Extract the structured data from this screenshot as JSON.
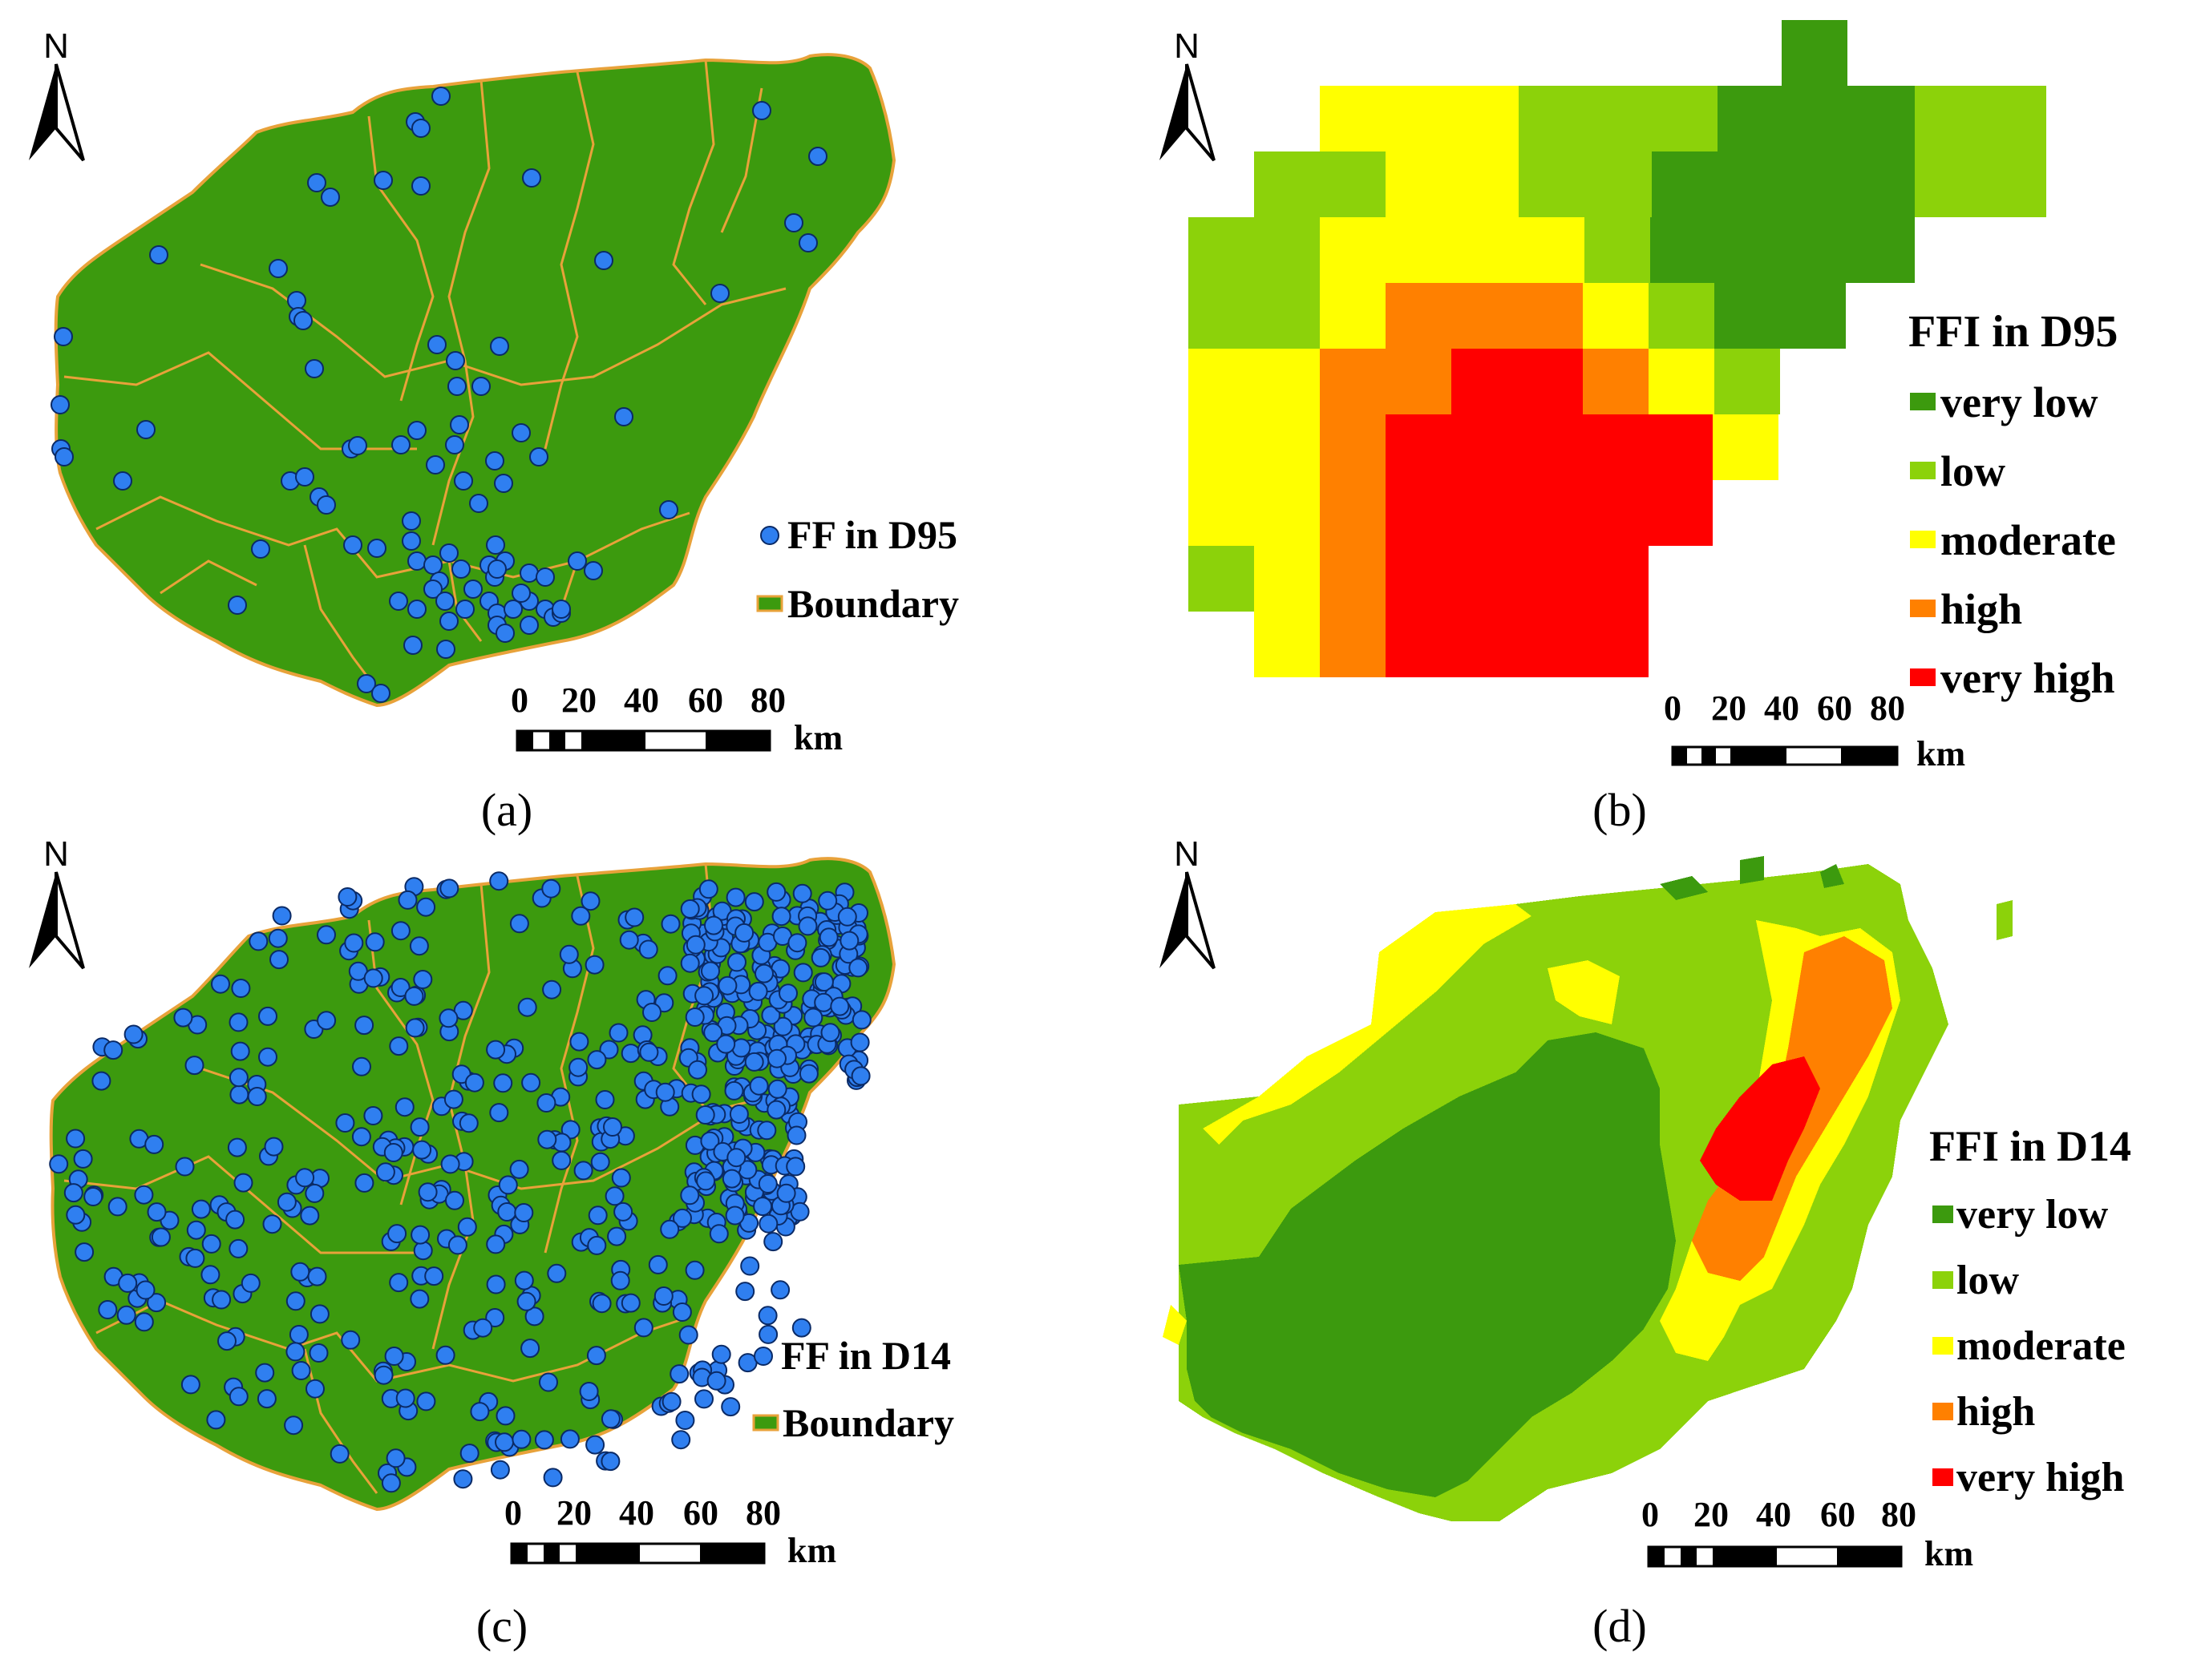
{
  "colors": {
    "land": "#3c9a0e",
    "boundary": "#e8a23a",
    "point": "#2f7ff0",
    "point_stroke": "#0a2a66",
    "very_low": "#3c9a0e",
    "low": "#8cd20a",
    "moderate": "#ffff00",
    "high": "#ff8000",
    "very_high": "#ff0000"
  },
  "panels": {
    "a": {
      "caption": "(a)",
      "north": "N",
      "legend": {
        "points": "FF in D95",
        "boundary": "Boundary"
      },
      "scale": {
        "ticks": [
          "0",
          "20",
          "40",
          "60",
          "80"
        ],
        "unit": "km"
      }
    },
    "b": {
      "caption": "(b)",
      "north": "N",
      "legend": {
        "title": "FFI in D95",
        "classes": [
          "very low",
          "low",
          "moderate",
          "high",
          "very high"
        ]
      },
      "scale": {
        "ticks": [
          "0",
          "20",
          "40",
          "60",
          "80"
        ],
        "unit": "km"
      }
    },
    "c": {
      "caption": "(c)",
      "north": "N",
      "legend": {
        "points": "FF in D14",
        "boundary": "Boundary"
      },
      "scale": {
        "ticks": [
          "0",
          "20",
          "40",
          "60",
          "80"
        ],
        "unit": "km"
      }
    },
    "d": {
      "caption": "(d)",
      "north": "N",
      "legend": {
        "title": "FFI in D14",
        "classes": [
          "very low",
          "low",
          "moderate",
          "high",
          "very high"
        ]
      },
      "scale": {
        "ticks": [
          "0",
          "20",
          "40",
          "60",
          "80"
        ],
        "unit": "km"
      }
    }
  }
}
